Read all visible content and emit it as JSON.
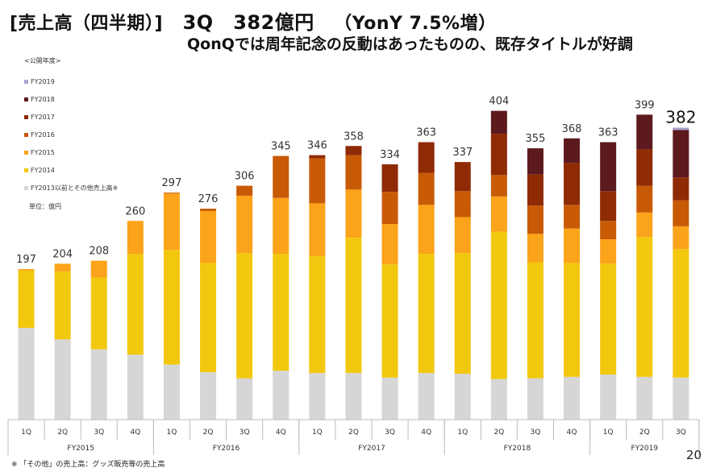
{
  "header": {
    "title_prefix": "[売上高（四半期）]",
    "title_quarter": "3Q",
    "title_value": "382億円",
    "title_yoy": "（YonY 7.5%増）",
    "subtitle": "QonQでは周年記念の反動はあったものの、既存タイトルが好調"
  },
  "legend": {
    "title": "<公開年度>",
    "unit": "単位：億円"
  },
  "footnote": "※ 「その他」の売上高：グッズ販売等の売上高",
  "page_number": "20",
  "chart_data": {
    "type": "bar",
    "stacked": true,
    "title": "売上高（四半期）",
    "xlabel": "",
    "ylabel": "億円",
    "ylim": [
      0,
      420
    ],
    "grid": false,
    "legend_position": "left",
    "categories": [
      "1Q",
      "2Q",
      "3Q",
      "4Q",
      "1Q",
      "2Q",
      "3Q",
      "4Q",
      "1Q",
      "2Q",
      "3Q",
      "4Q",
      "1Q",
      "2Q",
      "3Q",
      "4Q",
      "1Q",
      "2Q",
      "3Q"
    ],
    "groups": [
      {
        "label": "FY2015",
        "count": 4
      },
      {
        "label": "FY2016",
        "count": 4
      },
      {
        "label": "FY2017",
        "count": 4
      },
      {
        "label": "FY2018",
        "count": 4
      },
      {
        "label": "FY2019",
        "count": 3
      }
    ],
    "totals": [
      197,
      204,
      208,
      260,
      297,
      276,
      306,
      345,
      346,
      358,
      334,
      363,
      337,
      404,
      355,
      368,
      363,
      399,
      382
    ],
    "highlight_last_total": true,
    "series": [
      {
        "name": "FY2013以前とその他売上高※",
        "color": "#d6d6d6",
        "values": [
          120,
          105,
          92,
          85,
          72,
          62,
          54,
          64,
          61,
          61,
          55,
          61,
          60,
          53,
          54,
          56,
          59,
          56,
          55
        ]
      },
      {
        "name": "FY2014",
        "color": "#f2c80f",
        "values": [
          75,
          89,
          94,
          132,
          150,
          143,
          164,
          153,
          153,
          177,
          148,
          156,
          158,
          193,
          152,
          149,
          145,
          183,
          168
        ]
      },
      {
        "name": "FY2015",
        "color": "#fba31a",
        "values": [
          2,
          10,
          22,
          43,
          74,
          68,
          75,
          73,
          69,
          63,
          53,
          64,
          47,
          46,
          37,
          45,
          32,
          32,
          30
        ]
      },
      {
        "name": "FY2016",
        "color": "#c85a06",
        "values": [
          0,
          0,
          0,
          0,
          1,
          3,
          13,
          55,
          59,
          45,
          42,
          42,
          34,
          28,
          37,
          31,
          24,
          35,
          34
        ]
      },
      {
        "name": "FY2017",
        "color": "#8e2a04",
        "values": [
          0,
          0,
          0,
          0,
          0,
          0,
          0,
          0,
          4,
          12,
          36,
          40,
          38,
          54,
          41,
          55,
          39,
          48,
          30
        ]
      },
      {
        "name": "FY2018",
        "color": "#5c1a1f",
        "values": [
          0,
          0,
          0,
          0,
          0,
          0,
          0,
          0,
          0,
          0,
          0,
          0,
          0,
          30,
          34,
          32,
          64,
          45,
          62
        ]
      },
      {
        "name": "FY2019",
        "color": "#a6a4d0",
        "values": [
          0,
          0,
          0,
          0,
          0,
          0,
          0,
          0,
          0,
          0,
          0,
          0,
          0,
          0,
          0,
          0,
          0,
          0,
          3
        ]
      }
    ],
    "legend_order": [
      "FY2019",
      "FY2018",
      "FY2017",
      "FY2016",
      "FY2015",
      "FY2014",
      "FY2013以前とその他売上高※"
    ]
  }
}
